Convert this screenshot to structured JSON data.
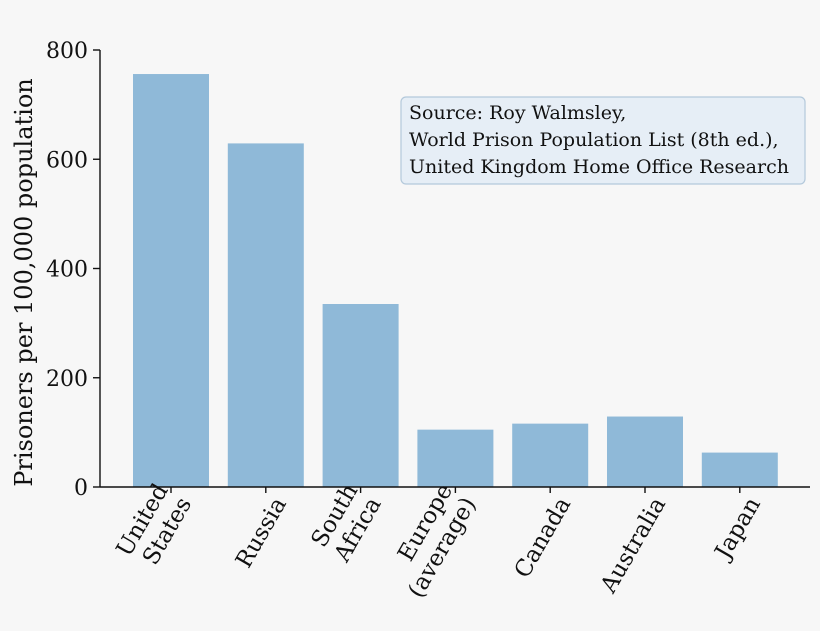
{
  "chart_data": {
    "type": "bar",
    "categories": [
      [
        "United",
        "States"
      ],
      [
        "Russia"
      ],
      [
        "South",
        "Africa"
      ],
      [
        "Europe",
        "(average)"
      ],
      [
        "Canada"
      ],
      [
        "Australia"
      ],
      [
        "Japan"
      ]
    ],
    "values": [
      756,
      629,
      335,
      105,
      116,
      129,
      63
    ],
    "ylabel": "Prisoners per 100,000 population",
    "ylim": [
      0,
      800
    ],
    "yticks": [
      "0",
      "200",
      "400",
      "600",
      "800"
    ],
    "grid": false,
    "annotation": [
      "Source: Roy Walmsley,",
      "World Prison Population List (8th ed.),",
      "United Kingdom Home Office Research"
    ],
    "colors": {
      "bar": "#8fb9d8",
      "annotation_fill": "#e6eef6",
      "annotation_stroke": "#b4c9db",
      "axis": "#111111"
    }
  }
}
